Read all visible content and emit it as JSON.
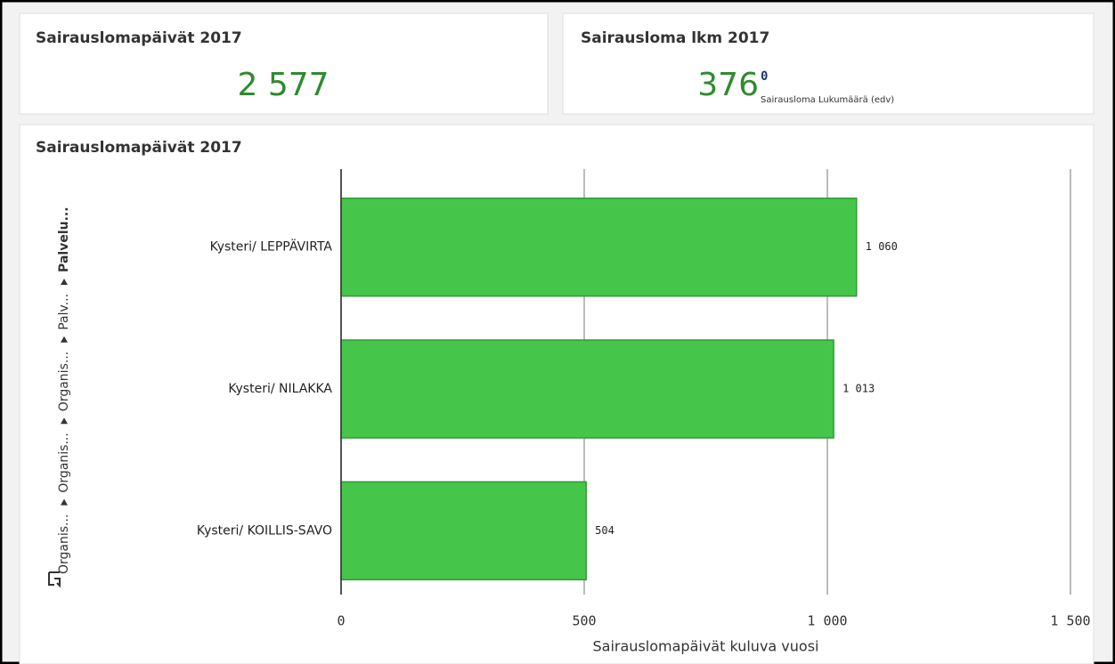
{
  "kpis": [
    {
      "title": "Sairauslomapäivät 2017",
      "value": "2 577"
    },
    {
      "title": "Sairausloma lkm 2017",
      "value": "376",
      "secondary": "0",
      "secondary_label": "Sairausloma Lukumäärä (edv)"
    }
  ],
  "breadcrumb": [
    "Organis...",
    "Organis...",
    "Organis...",
    "Palv...",
    "Palvelu..."
  ],
  "chart_data": {
    "type": "hbar",
    "title": "Sairauslomapäivät 2017",
    "categories": [
      "Kysteri/ LEPPÄVIRTA",
      "Kysteri/ NILAKKA",
      "Kysteri/ KOILLIS-SAVO"
    ],
    "values": [
      1060,
      1013,
      504
    ],
    "value_labels": [
      "1 060",
      "1 013",
      "504"
    ],
    "color": "#45c64b",
    "xlabel": "Sairauslomapäivät kuluva vuosi",
    "xlim": [
      0,
      1500
    ],
    "xticks": [
      0,
      500,
      {
        "value": 1000,
        "label": "1 000"
      },
      {
        "value": 1500,
        "label": "1 500"
      }
    ],
    "grid": true
  }
}
